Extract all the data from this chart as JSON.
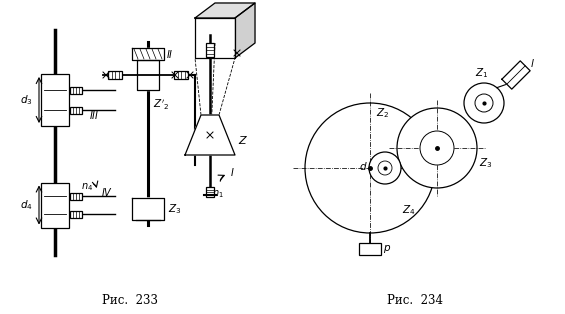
{
  "fig_width": 5.65,
  "fig_height": 3.14,
  "dpi": 100,
  "bg_color": "#ffffff",
  "line_color": "#000000",
  "caption1": "Рис.  233",
  "caption2": "Рис.  234",
  "caption_fontsize": 8.5
}
